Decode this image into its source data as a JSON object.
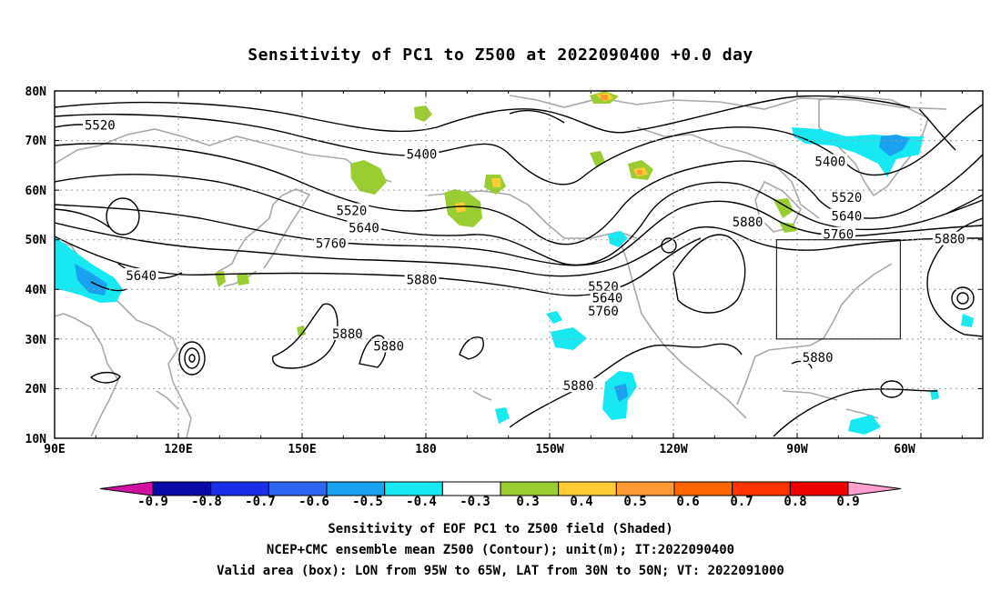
{
  "title": "Sensitivity of PC1 to Z500 at 2022090400 +0.0 day",
  "map": {
    "lat_labels": [
      "80N",
      "70N",
      "60N",
      "50N",
      "40N",
      "30N",
      "20N",
      "10N"
    ],
    "lon_labels": [
      "90E",
      "120E",
      "150E",
      "180",
      "150W",
      "120W",
      "90W",
      "60W"
    ],
    "contour_labels": [
      {
        "text": "5520",
        "lon": 101,
        "lat": 73.1
      },
      {
        "text": "5400",
        "lon": 179,
        "lat": 67.3
      },
      {
        "text": "5520",
        "lon": 162,
        "lat": 55.9
      },
      {
        "text": "5640",
        "lon": 165,
        "lat": 52.4
      },
      {
        "text": "5760",
        "lon": 157,
        "lat": 49.3
      },
      {
        "text": "5640",
        "lon": 111,
        "lat": 42.8
      },
      {
        "text": "5880",
        "lon": 179,
        "lat": 42.0
      },
      {
        "text": "5520",
        "lon": 223,
        "lat": 40.6
      },
      {
        "text": "5640",
        "lon": 224,
        "lat": 38.3
      },
      {
        "text": "5760",
        "lon": 223,
        "lat": 35.7
      },
      {
        "text": "5880",
        "lon": 258,
        "lat": 53.6
      },
      {
        "text": "5400",
        "lon": 278,
        "lat": 65.8
      },
      {
        "text": "5520",
        "lon": 282,
        "lat": 58.6
      },
      {
        "text": "5640",
        "lon": 282,
        "lat": 54.8
      },
      {
        "text": "5760",
        "lon": 280,
        "lat": 51.1
      },
      {
        "text": "5880",
        "lon": 307,
        "lat": 50.2
      },
      {
        "text": "5880",
        "lon": 161,
        "lat": 31.1
      },
      {
        "text": "5880",
        "lon": 171,
        "lat": 28.6
      },
      {
        "text": "5880",
        "lon": 217,
        "lat": 20.6
      },
      {
        "text": "5880",
        "lon": 275,
        "lat": 26.3
      }
    ],
    "valid_box": {
      "lon_west": 265,
      "lon_east": 295,
      "lat_south": 30,
      "lat_north": 50
    }
  },
  "colorbar": {
    "tick_labels": [
      "-0.9",
      "-0.8",
      "-0.7",
      "-0.6",
      "-0.5",
      "-0.4",
      "-0.3",
      "0.3",
      "0.4",
      "0.5",
      "0.6",
      "0.7",
      "0.8",
      "0.9"
    ],
    "colors": [
      "#0a0aa8",
      "#1a2ee8",
      "#2c66f2",
      "#1aa2f0",
      "#18e8f2",
      "#ffffff",
      "#9acd32",
      "#ffcc33",
      "#ff9933",
      "#ff6600",
      "#ff3300",
      "#ee0000"
    ],
    "low_end_color": "#d010a0",
    "high_end_color": "#ffa0d0"
  },
  "footer": {
    "line1": "Sensitivity of EOF PC1 to Z500 field (Shaded)",
    "line2": "NCEP+CMC ensemble mean Z500 (Contour); unit(m); IT:2022090400",
    "line3": "Valid area (box): LON from 95W to 65W, LAT from 30N to 50N; VT: 2022091000"
  }
}
